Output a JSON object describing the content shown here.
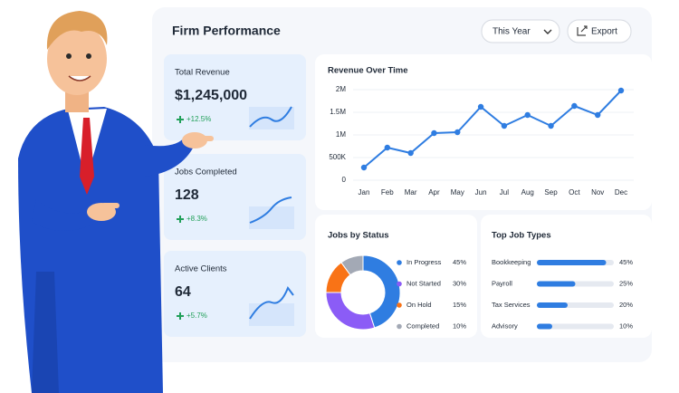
{
  "header": {
    "title": "Firm Performance",
    "period": "This Year",
    "export": "Export"
  },
  "kpis": [
    {
      "label": "Total Revenue",
      "value": "$1,245,000",
      "change": "+12.5%"
    },
    {
      "label": "Jobs Completed",
      "value": "128",
      "change": "+8.3%"
    },
    {
      "label": "Active Clients",
      "value": "64",
      "change": "+5.7%"
    }
  ],
  "chart_data": [
    {
      "type": "line",
      "title": "Revenue Over Time",
      "categories": [
        "Jan",
        "Feb",
        "Mar",
        "Apr",
        "May",
        "Jun",
        "Jul",
        "Aug",
        "Sep",
        "Oct",
        "Nov",
        "Dec"
      ],
      "values": [
        280000,
        720000,
        600000,
        1040000,
        1060000,
        1620000,
        1200000,
        1440000,
        1200000,
        1640000,
        1440000,
        1980000
      ],
      "color": "#2f7de1",
      "ylim": [
        0,
        2000000
      ],
      "yticks": [
        0,
        {
          "value": 500000,
          "label": "500K"
        },
        {
          "value": 1000000,
          "label": "1M"
        },
        {
          "value": 1500000,
          "label": "1.5M"
        },
        {
          "value": 2000000,
          "label": "2M"
        }
      ],
      "grid": true
    },
    {
      "type": "pie",
      "title": "Jobs by Status",
      "categories": [
        "In Progress",
        "Not Started",
        "On Hold",
        "Completed"
      ],
      "values": [
        45,
        30,
        15,
        10
      ],
      "value_labels": [
        "45%",
        "30%",
        "15%",
        "10%"
      ],
      "colors": [
        "#2f7de1",
        "#8b5cf6",
        "#f97316",
        "#a3a9b5"
      ]
    },
    {
      "type": "bar",
      "orientation": "horizontal",
      "title": "Top Job Types",
      "categories": [
        "Bookkeeping",
        "Payroll",
        "Tax Services",
        "Advisory"
      ],
      "values": [
        45,
        25,
        20,
        10
      ],
      "value_labels": [
        "45%",
        "25%",
        "20%",
        "10%"
      ],
      "xlim": [
        0,
        50
      ],
      "color": "#2f7de1"
    }
  ]
}
